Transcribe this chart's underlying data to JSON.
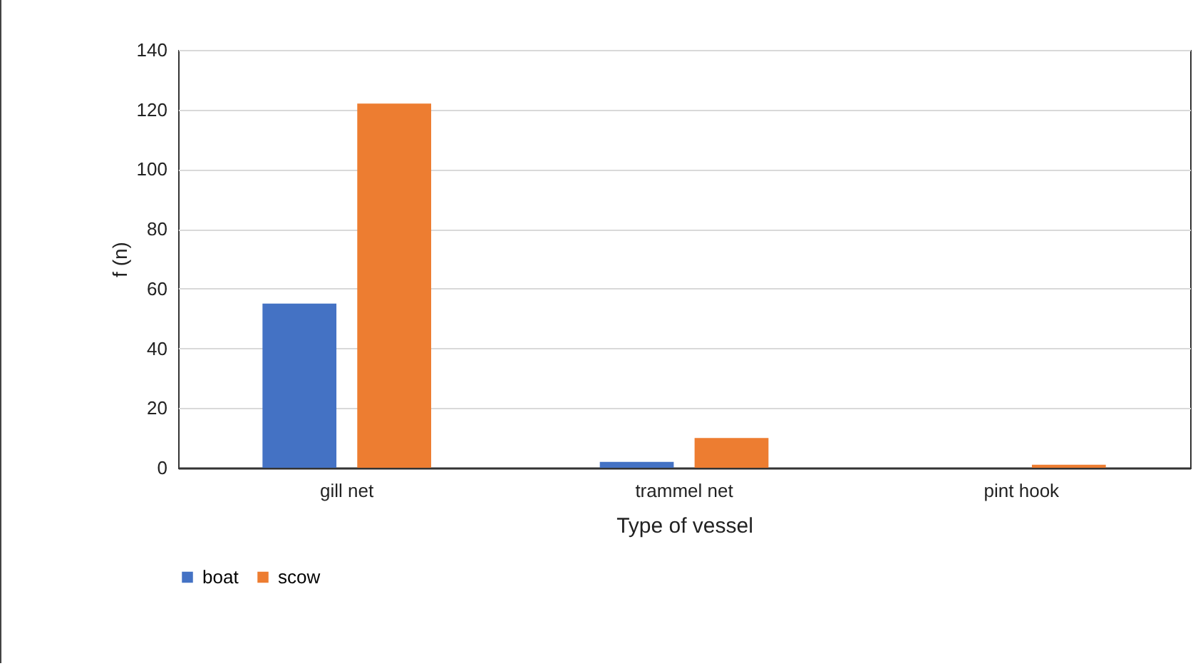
{
  "chart_data": {
    "type": "bar",
    "xlabel": "Type of vessel",
    "ylabel": "f (n)",
    "categories": [
      "gill net",
      "trammel net",
      "pint hook"
    ],
    "series": [
      {
        "name": "boat",
        "color": "#4472c4",
        "values": [
          55,
          2,
          0
        ]
      },
      {
        "name": "scow",
        "color": "#ed7d31",
        "values": [
          122,
          10,
          1
        ]
      }
    ],
    "ylim": [
      0,
      140
    ],
    "yticks": [
      0,
      20,
      40,
      60,
      80,
      100,
      120,
      140
    ],
    "grid": "y",
    "legend": "bottom"
  }
}
